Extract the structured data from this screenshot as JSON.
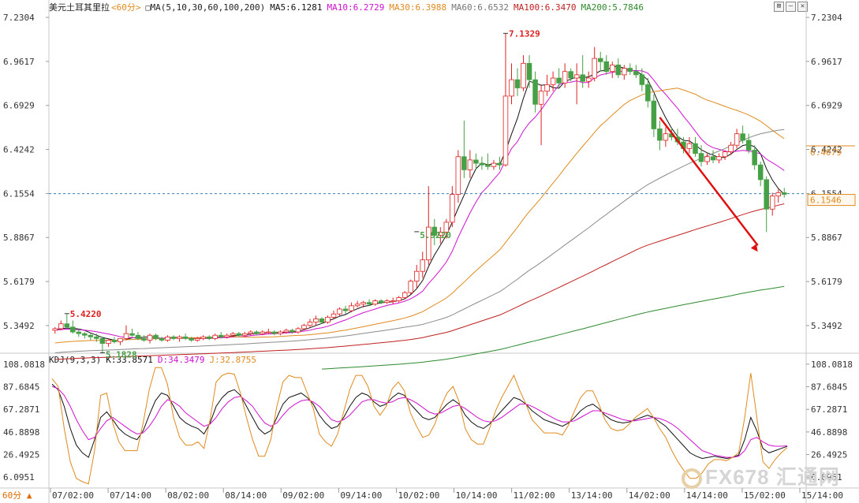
{
  "header": {
    "symbol": "美元土耳其里拉",
    "period_tag": "<60分>",
    "ma_icon": "□",
    "ma_params": "MA(5,10,30,60,100,200)",
    "ma5": "MA5:6.1281",
    "ma10": "MA10:6.2729",
    "ma30": "MA30:6.3988",
    "ma60": "MA60:6.6532",
    "ma100": "MA100:6.3470",
    "ma200": "MA200:5.7846"
  },
  "kdj_header": {
    "params": "KDJ(9,3,3)",
    "k": "K:33.8571",
    "d": "D:34.3479",
    "j": "J:32.8755"
  },
  "window_buttons": [
    "⊠",
    "—",
    "✕"
  ],
  "period_label": "60分 ▲",
  "watermark": "FX678 汇通网",
  "colors": {
    "up": "#e02020",
    "down": "#46a046",
    "ma5": "#111111",
    "ma10": "#d010d0",
    "ma30": "#e08a1e",
    "ma60": "#8c8c8c",
    "ma100": "#c02020",
    "ma200": "#2d8a2d",
    "k": "#111111",
    "d": "#d010d0",
    "j": "#e08a1e",
    "current": "#3a7fbf"
  },
  "chart_data": [
    {
      "type": "candlestick",
      "title": "美元土耳其里拉",
      "ylim": [
        5.19,
        7.25
      ],
      "y_ticks": [
        "7.2304",
        "6.9617",
        "6.6929",
        "6.4242",
        "6.1554",
        "5.8867",
        "5.6179",
        "5.3492"
      ],
      "x_ticks": [
        "07/02:00",
        "07/14:00",
        "08/02:00",
        "08/14:00",
        "09/02:00",
        "09/14:00",
        "10/02:00",
        "10/14:00",
        "11/02:00",
        "13/14:00",
        "14/02:00",
        "14/14:00",
        "15/02:00",
        "15/14:00"
      ],
      "annotations": {
        "high_label": "7.1329",
        "high_value": 7.1329,
        "low_label": "5.9220",
        "low_value": 5.922,
        "early_high_label": "5.4220",
        "early_high_value": 5.422,
        "early_low_label": "5.1828",
        "early_low_value": 5.1828,
        "current_price": "6.1546",
        "current_value": 6.1546,
        "ma30_tag": "6.4079",
        "ma30_value": 6.4079
      },
      "candles": [
        [
          5.32,
          5.34,
          5.3,
          5.33
        ],
        [
          5.33,
          5.38,
          5.32,
          5.36
        ],
        [
          5.36,
          5.42,
          5.33,
          5.34
        ],
        [
          5.34,
          5.38,
          5.3,
          5.31
        ],
        [
          5.31,
          5.33,
          5.28,
          5.3
        ],
        [
          5.3,
          5.31,
          5.27,
          5.29
        ],
        [
          5.29,
          5.3,
          5.26,
          5.28
        ],
        [
          5.28,
          5.3,
          5.25,
          5.27
        ],
        [
          5.27,
          5.28,
          5.18,
          5.24
        ],
        [
          5.24,
          5.27,
          5.22,
          5.26
        ],
        [
          5.26,
          5.28,
          5.24,
          5.25
        ],
        [
          5.25,
          5.27,
          5.23,
          5.27
        ],
        [
          5.27,
          5.35,
          5.26,
          5.3
        ],
        [
          5.3,
          5.33,
          5.28,
          5.29
        ],
        [
          5.29,
          5.31,
          5.26,
          5.27
        ],
        [
          5.27,
          5.29,
          5.25,
          5.26
        ],
        [
          5.26,
          5.3,
          5.24,
          5.29
        ],
        [
          5.29,
          5.3,
          5.26,
          5.27
        ],
        [
          5.27,
          5.28,
          5.25,
          5.26
        ],
        [
          5.26,
          5.29,
          5.25,
          5.28
        ],
        [
          5.28,
          5.29,
          5.26,
          5.27
        ],
        [
          5.27,
          5.29,
          5.25,
          5.28
        ],
        [
          5.28,
          5.3,
          5.26,
          5.27
        ],
        [
          5.27,
          5.28,
          5.25,
          5.26
        ],
        [
          5.26,
          5.28,
          5.25,
          5.27
        ],
        [
          5.27,
          5.29,
          5.26,
          5.28
        ],
        [
          5.28,
          5.29,
          5.26,
          5.27
        ],
        [
          5.27,
          5.3,
          5.26,
          5.29
        ],
        [
          5.29,
          5.31,
          5.27,
          5.28
        ],
        [
          5.28,
          5.3,
          5.27,
          5.29
        ],
        [
          5.29,
          5.31,
          5.28,
          5.3
        ],
        [
          5.3,
          5.31,
          5.28,
          5.29
        ],
        [
          5.29,
          5.31,
          5.28,
          5.3
        ],
        [
          5.3,
          5.32,
          5.29,
          5.31
        ],
        [
          5.31,
          5.32,
          5.29,
          5.3
        ],
        [
          5.3,
          5.32,
          5.29,
          5.31
        ],
        [
          5.31,
          5.33,
          5.3,
          5.31
        ],
        [
          5.31,
          5.32,
          5.29,
          5.3
        ],
        [
          5.3,
          5.32,
          5.29,
          5.31
        ],
        [
          5.31,
          5.33,
          5.3,
          5.32
        ],
        [
          5.32,
          5.33,
          5.3,
          5.31
        ],
        [
          5.31,
          5.34,
          5.3,
          5.33
        ],
        [
          5.33,
          5.36,
          5.32,
          5.35
        ],
        [
          5.35,
          5.39,
          5.34,
          5.37
        ],
        [
          5.37,
          5.41,
          5.35,
          5.39
        ],
        [
          5.39,
          5.4,
          5.36,
          5.37
        ],
        [
          5.37,
          5.41,
          5.36,
          5.4
        ],
        [
          5.4,
          5.44,
          5.39,
          5.42
        ],
        [
          5.42,
          5.46,
          5.41,
          5.45
        ],
        [
          5.45,
          5.47,
          5.42,
          5.44
        ],
        [
          5.44,
          5.49,
          5.43,
          5.47
        ],
        [
          5.47,
          5.5,
          5.46,
          5.48
        ],
        [
          5.48,
          5.5,
          5.46,
          5.49
        ],
        [
          5.49,
          5.51,
          5.47,
          5.48
        ],
        [
          5.48,
          5.51,
          5.47,
          5.5
        ],
        [
          5.5,
          5.51,
          5.48,
          5.49
        ],
        [
          5.49,
          5.51,
          5.48,
          5.5
        ],
        [
          5.5,
          5.52,
          5.48,
          5.5
        ],
        [
          5.5,
          5.53,
          5.49,
          5.52
        ],
        [
          5.52,
          5.56,
          5.51,
          5.55
        ],
        [
          5.55,
          5.63,
          5.54,
          5.62
        ],
        [
          5.62,
          5.72,
          5.58,
          5.68
        ],
        [
          5.68,
          5.8,
          5.64,
          5.75
        ],
        [
          5.75,
          6.2,
          5.72,
          5.95
        ],
        [
          5.95,
          6.0,
          5.84,
          5.9
        ],
        [
          5.9,
          5.95,
          5.85,
          5.92
        ],
        [
          5.92,
          6.0,
          5.88,
          5.98
        ],
        [
          5.98,
          6.2,
          5.95,
          6.15
        ],
        [
          6.15,
          6.42,
          6.1,
          6.38
        ],
        [
          6.38,
          6.6,
          6.25,
          6.3
        ],
        [
          6.3,
          6.42,
          6.25,
          6.36
        ],
        [
          6.36,
          6.4,
          6.3,
          6.34
        ],
        [
          6.34,
          6.38,
          6.3,
          6.33
        ],
        [
          6.33,
          6.4,
          6.3,
          6.32
        ],
        [
          6.32,
          6.36,
          6.3,
          6.34
        ],
        [
          6.34,
          6.38,
          6.3,
          6.33
        ],
        [
          6.33,
          7.13,
          6.32,
          6.75
        ],
        [
          6.75,
          6.95,
          6.7,
          6.85
        ],
        [
          6.85,
          6.92,
          6.75,
          6.8
        ],
        [
          6.8,
          7.0,
          6.78,
          6.95
        ],
        [
          6.95,
          7.0,
          6.8,
          6.85
        ],
        [
          6.85,
          6.9,
          6.65,
          6.7
        ],
        [
          6.7,
          6.82,
          6.45,
          6.78
        ],
        [
          6.78,
          6.88,
          6.75,
          6.82
        ],
        [
          6.82,
          6.9,
          6.78,
          6.86
        ],
        [
          6.86,
          6.92,
          6.8,
          6.83
        ],
        [
          6.83,
          6.95,
          6.8,
          6.9
        ],
        [
          6.9,
          6.92,
          6.84,
          6.86
        ],
        [
          6.86,
          6.95,
          6.7,
          6.88
        ],
        [
          6.88,
          7.0,
          6.8,
          6.84
        ],
        [
          6.84,
          6.9,
          6.8,
          6.86
        ],
        [
          6.86,
          7.05,
          6.84,
          6.98
        ],
        [
          6.98,
          7.02,
          6.9,
          6.96
        ],
        [
          6.96,
          7.0,
          6.88,
          6.9
        ],
        [
          6.9,
          6.96,
          6.86,
          6.94
        ],
        [
          6.94,
          6.98,
          6.86,
          6.88
        ],
        [
          6.88,
          6.94,
          6.85,
          6.92
        ],
        [
          6.92,
          6.95,
          6.88,
          6.9
        ],
        [
          6.9,
          6.94,
          6.86,
          6.88
        ],
        [
          6.88,
          6.92,
          6.78,
          6.82
        ],
        [
          6.82,
          6.86,
          6.68,
          6.72
        ],
        [
          6.72,
          6.76,
          6.5,
          6.55
        ],
        [
          6.55,
          6.6,
          6.42,
          6.48
        ],
        [
          6.48,
          6.56,
          6.44,
          6.52
        ],
        [
          6.52,
          6.56,
          6.48,
          6.5
        ],
        [
          6.5,
          6.55,
          6.45,
          6.47
        ],
        [
          6.47,
          6.5,
          6.4,
          6.43
        ],
        [
          6.43,
          6.5,
          6.4,
          6.46
        ],
        [
          6.46,
          6.5,
          6.38,
          6.4
        ],
        [
          6.4,
          6.45,
          6.32,
          6.35
        ],
        [
          6.35,
          6.4,
          6.33,
          6.38
        ],
        [
          6.38,
          6.42,
          6.34,
          6.36
        ],
        [
          6.36,
          6.4,
          6.34,
          6.38
        ],
        [
          6.38,
          6.42,
          6.36,
          6.41
        ],
        [
          6.41,
          6.47,
          6.39,
          6.45
        ],
        [
          6.45,
          6.55,
          6.43,
          6.52
        ],
        [
          6.52,
          6.57,
          6.46,
          6.48
        ],
        [
          6.48,
          6.52,
          6.4,
          6.42
        ],
        [
          6.42,
          6.45,
          6.3,
          6.33
        ],
        [
          6.33,
          6.35,
          6.2,
          6.24
        ],
        [
          6.24,
          6.26,
          5.92,
          6.06
        ],
        [
          6.06,
          6.16,
          6.02,
          6.14
        ],
        [
          6.14,
          6.18,
          6.1,
          6.16
        ],
        [
          6.16,
          6.19,
          6.13,
          6.15
        ]
      ]
    },
    {
      "type": "line",
      "title": "KDJ(9,3,3)",
      "ylim": [
        -3,
        108
      ],
      "y_ticks": [
        "108.0818",
        "87.6845",
        "67.2871",
        "46.8898",
        "26.4925",
        "6.0951"
      ],
      "series": [
        {
          "name": "K",
          "values": [
            90,
            85,
            70,
            50,
            35,
            28,
            24,
            40,
            60,
            65,
            58,
            50,
            45,
            42,
            40,
            48,
            62,
            75,
            82,
            80,
            70,
            60,
            55,
            52,
            50,
            45,
            55,
            70,
            78,
            83,
            85,
            80,
            70,
            60,
            50,
            45,
            48,
            60,
            72,
            78,
            80,
            82,
            78,
            72,
            62,
            55,
            50,
            52,
            60,
            70,
            78,
            82,
            80,
            74,
            70,
            72,
            78,
            82,
            80,
            72,
            66,
            60,
            58,
            60,
            66,
            72,
            76,
            72,
            62,
            56,
            52,
            50,
            54,
            60,
            66,
            72,
            78,
            76,
            72,
            66,
            62,
            58,
            56,
            54,
            52,
            55,
            60,
            66,
            70,
            72,
            68,
            62,
            58,
            56,
            55,
            56,
            58,
            60,
            62,
            60,
            56,
            52,
            46,
            40,
            34,
            28,
            25,
            23,
            24,
            25,
            24,
            23,
            24,
            26,
            40,
            60,
            48,
            32,
            28,
            30,
            32,
            33.86
          ]
        },
        {
          "name": "D",
          "values": [
            88,
            86,
            80,
            70,
            58,
            48,
            40,
            42,
            50,
            57,
            60,
            56,
            52,
            48,
            45,
            46,
            52,
            60,
            70,
            76,
            74,
            70,
            64,
            60,
            56,
            52,
            54,
            60,
            68,
            74,
            78,
            79,
            75,
            70,
            62,
            55,
            52,
            55,
            62,
            68,
            72,
            75,
            76,
            74,
            70,
            64,
            58,
            56,
            58,
            62,
            68,
            74,
            76,
            76,
            74,
            73,
            74,
            77,
            78,
            76,
            73,
            69,
            65,
            63,
            64,
            67,
            70,
            71,
            68,
            64,
            60,
            57,
            56,
            57,
            60,
            64,
            68,
            72,
            72,
            70,
            67,
            64,
            61,
            58,
            56,
            56,
            57,
            60,
            63,
            66,
            66,
            64,
            62,
            60,
            58,
            57,
            57,
            58,
            59,
            60,
            59,
            57,
            54,
            50,
            45,
            40,
            35,
            30,
            28,
            26,
            25,
            24,
            24,
            25,
            30,
            40,
            42,
            38,
            35,
            34,
            34,
            34.35
          ]
        },
        {
          "name": "J",
          "values": [
            95,
            88,
            50,
            20,
            5,
            2,
            0,
            30,
            80,
            82,
            55,
            38,
            30,
            30,
            30,
            55,
            85,
            105,
            105,
            90,
            60,
            42,
            35,
            35,
            38,
            32,
            58,
            92,
            98,
            100,
            99,
            82,
            60,
            40,
            25,
            25,
            40,
            70,
            92,
            98,
            96,
            96,
            82,
            68,
            45,
            38,
            34,
            45,
            65,
            85,
            98,
            98,
            88,
            70,
            62,
            70,
            86,
            92,
            84,
            64,
            52,
            42,
            44,
            54,
            70,
            82,
            88,
            74,
            50,
            40,
            36,
            36,
            50,
            66,
            78,
            88,
            98,
            84,
            72,
            58,
            52,
            46,
            46,
            46,
            44,
            53,
            66,
            78,
            84,
            84,
            72,
            58,
            50,
            48,
            49,
            54,
            60,
            64,
            68,
            60,
            50,
            42,
            30,
            20,
            12,
            5,
            5,
            10,
            18,
            22,
            22,
            21,
            24,
            28,
            60,
            100,
            60,
            20,
            14,
            22,
            28,
            32.88
          ]
        }
      ],
      "annotation_arrow": true
    }
  ]
}
